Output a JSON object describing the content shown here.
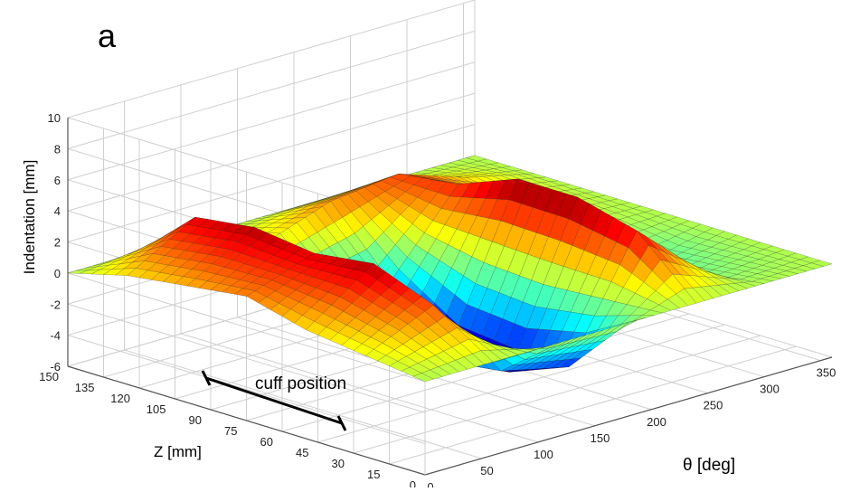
{
  "panel": {
    "label": "a"
  },
  "annotation": {
    "text": "cuff position"
  },
  "chart_data": {
    "type": "surface",
    "title": "",
    "zlabel": "Indentation [mm]",
    "ylabel": "Z [mm]",
    "xlabel": "θ [deg]",
    "zlim": [
      -6,
      10
    ],
    "ylim": [
      0,
      150
    ],
    "xlim": [
      0,
      360
    ],
    "z_ticks": [
      "-6",
      "-4",
      "-2",
      "0",
      "2",
      "4",
      "6",
      "8",
      "10"
    ],
    "y_ticks": [
      "0",
      "15",
      "30",
      "45",
      "60",
      "75",
      "90",
      "105",
      "120",
      "135",
      "150"
    ],
    "x_ticks": [
      "0",
      "50",
      "100",
      "150",
      "200",
      "250",
      "300",
      "350"
    ],
    "grid": true,
    "colormap": "jet",
    "cuff_position_z": [
      30,
      90
    ],
    "theta": [
      0,
      60,
      120,
      180,
      240,
      300,
      360
    ],
    "z": [
      0,
      25,
      50,
      75,
      100,
      125,
      150
    ],
    "indentation": [
      [
        0.0,
        0.0,
        0.0,
        0.0,
        0.0,
        0.0,
        0.0
      ],
      [
        0.5,
        2.5,
        -3.0,
        -4.0,
        3.5,
        -0.5,
        0.0
      ],
      [
        1.0,
        4.0,
        -3.5,
        -5.5,
        4.5,
        -1.0,
        0.0
      ],
      [
        2.0,
        3.5,
        -4.0,
        -5.0,
        4.5,
        0.0,
        0.0
      ],
      [
        1.5,
        4.0,
        -2.5,
        -2.0,
        3.0,
        0.5,
        0.0
      ],
      [
        1.0,
        3.5,
        0.5,
        2.0,
        2.5,
        1.0,
        0.0
      ],
      [
        0.0,
        0.0,
        0.0,
        0.0,
        0.0,
        0.0,
        0.0
      ]
    ]
  }
}
